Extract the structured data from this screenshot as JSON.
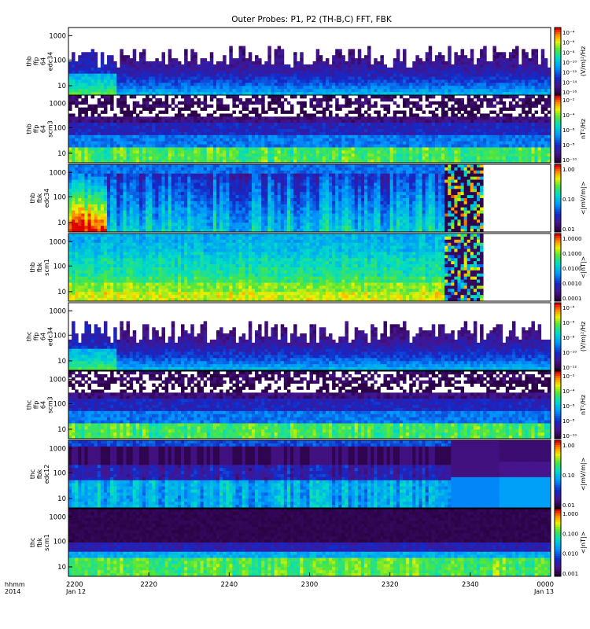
{
  "title": "Outer Probes: P1, P2 (TH-B,C) FFT, FBK",
  "time_axis": {
    "row1_label": "hhmm",
    "row2_label": "2014",
    "ticks": [
      {
        "label": "2200",
        "sub": "Jan 12",
        "minute": 0
      },
      {
        "label": "2220",
        "sub": "",
        "minute": 20
      },
      {
        "label": "2240",
        "sub": "",
        "minute": 40
      },
      {
        "label": "2300",
        "sub": "",
        "minute": 60
      },
      {
        "label": "2320",
        "sub": "",
        "minute": 80
      },
      {
        "label": "2340",
        "sub": "",
        "minute": 100
      },
      {
        "label": "0000",
        "sub": "Jan 13",
        "minute": 120
      }
    ]
  },
  "chart_data": [
    {
      "type": "heatmap",
      "panel_label": [
        "thb",
        "ffp",
        "64",
        "edc34"
      ],
      "y_scale": "log",
      "y_ticks": [
        "1000",
        "100",
        "10"
      ],
      "colorbar": {
        "unit": "(V/m)²/Hz",
        "ticks": [
          "10⁻⁴",
          "10⁻⁶",
          "10⁻⁸",
          "10⁻¹⁰",
          "10⁻¹²",
          "10⁻¹⁴",
          "10⁻¹⁶"
        ]
      },
      "style": "noisy",
      "data_end_minute": 120
    },
    {
      "type": "heatmap",
      "panel_label": [
        "thb",
        "ffp",
        "64",
        "scm3"
      ],
      "y_scale": "log",
      "y_ticks": [
        "1000",
        "100",
        "10"
      ],
      "colorbar": {
        "unit": "nT²/Hz",
        "ticks": [
          "10⁻²",
          "10⁻⁴",
          "10⁻⁶",
          "10⁻⁸",
          "10⁻¹⁰"
        ]
      },
      "style": "banded",
      "data_end_minute": 120
    },
    {
      "type": "heatmap",
      "panel_label": [
        "thb",
        "fbk",
        "edc34"
      ],
      "y_scale": "log",
      "y_ticks": [
        "1000",
        "100",
        "10"
      ],
      "colorbar": {
        "unit": "<|mV/m|>",
        "ticks": [
          "1.00",
          "0.10",
          "0.01"
        ]
      },
      "style": "fbk",
      "data_end_minute": 103
    },
    {
      "type": "heatmap",
      "panel_label": [
        "thb",
        "fbk",
        "scm1"
      ],
      "y_scale": "log",
      "y_ticks": [
        "1000",
        "100",
        "10"
      ],
      "colorbar": {
        "unit": "<|nT|>",
        "ticks": [
          "1.0000",
          "0.1000",
          "0.0100",
          "0.0010",
          "0.0001"
        ]
      },
      "style": "fbk2",
      "data_end_minute": 103
    },
    {
      "type": "heatmap",
      "panel_label": [
        "thc",
        "ffp",
        "64",
        "edc34"
      ],
      "y_scale": "log",
      "y_ticks": [
        "1000",
        "100",
        "10"
      ],
      "colorbar": {
        "unit": "(V/m)²/Hz",
        "ticks": [
          "10⁻⁴",
          "10⁻⁶",
          "10⁻⁸",
          "10⁻¹⁰",
          "10⁻¹²"
        ]
      },
      "style": "noisy",
      "data_end_minute": 120
    },
    {
      "type": "heatmap",
      "panel_label": [
        "thc",
        "ffp",
        "64",
        "scm3"
      ],
      "y_scale": "log",
      "y_ticks": [
        "1000",
        "100",
        "10"
      ],
      "colorbar": {
        "unit": "nT²/Hz",
        "ticks": [
          "10⁻²",
          "10⁻⁴",
          "10⁻⁶",
          "10⁻⁸",
          "10⁻¹⁰"
        ]
      },
      "style": "banded",
      "data_end_minute": 120
    },
    {
      "type": "heatmap",
      "panel_label": [
        "thc",
        "fbk",
        "edc12"
      ],
      "y_scale": "log",
      "y_ticks": [
        "1000",
        "100",
        "10"
      ],
      "colorbar": {
        "unit": "<|mV/m|>",
        "ticks": [
          "1.00",
          "0.10",
          "0.01"
        ]
      },
      "style": "fbkc",
      "data_end_minute": 120
    },
    {
      "type": "heatmap",
      "panel_label": [
        "thc",
        "fbk",
        "scm1"
      ],
      "y_scale": "log",
      "y_ticks": [
        "1000",
        "100",
        "10"
      ],
      "colorbar": {
        "unit": "<|nT|>",
        "ticks": [
          "1.000",
          "0.100",
          "0.010",
          "0.001"
        ]
      },
      "style": "fbkc2",
      "data_end_minute": 120
    }
  ]
}
